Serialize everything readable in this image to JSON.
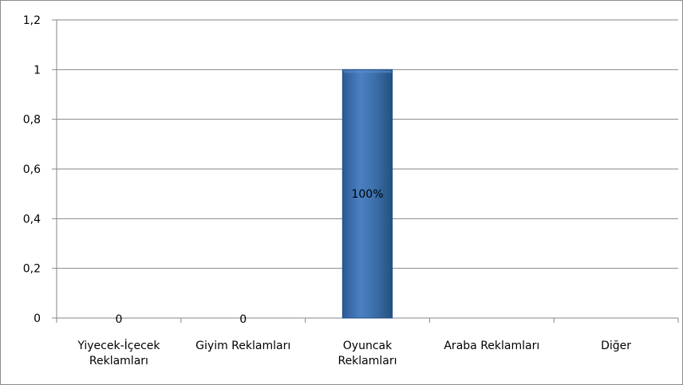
{
  "chart_data": {
    "type": "bar",
    "title": "",
    "xlabel": "",
    "ylabel": "",
    "categories": [
      [
        "Yiyecek-İçecek",
        "Reklamları"
      ],
      [
        "Giyim Reklamları"
      ],
      [
        "Oyuncak",
        "Reklamları"
      ],
      [
        "Araba Reklamları"
      ],
      [
        "Diğer"
      ]
    ],
    "values": [
      0,
      0,
      1,
      null,
      null
    ],
    "data_labels": [
      "0",
      "0",
      "100%",
      "",
      ""
    ],
    "ylim": [
      0,
      1.2
    ],
    "yticks": [
      0,
      0.2,
      0.4,
      0.6,
      0.8,
      1,
      1.2
    ],
    "ytick_labels": [
      "0",
      "0,2",
      "0,4",
      "0,6",
      "0,8",
      "1",
      "1,2"
    ],
    "grid": "horizontal",
    "legend": "none",
    "colors": {
      "bar": "#3f73b0",
      "bar_dark": "#1f4e86",
      "bar_light": "#5b8ed0",
      "grid": "#868686",
      "axis": "#868686"
    }
  }
}
